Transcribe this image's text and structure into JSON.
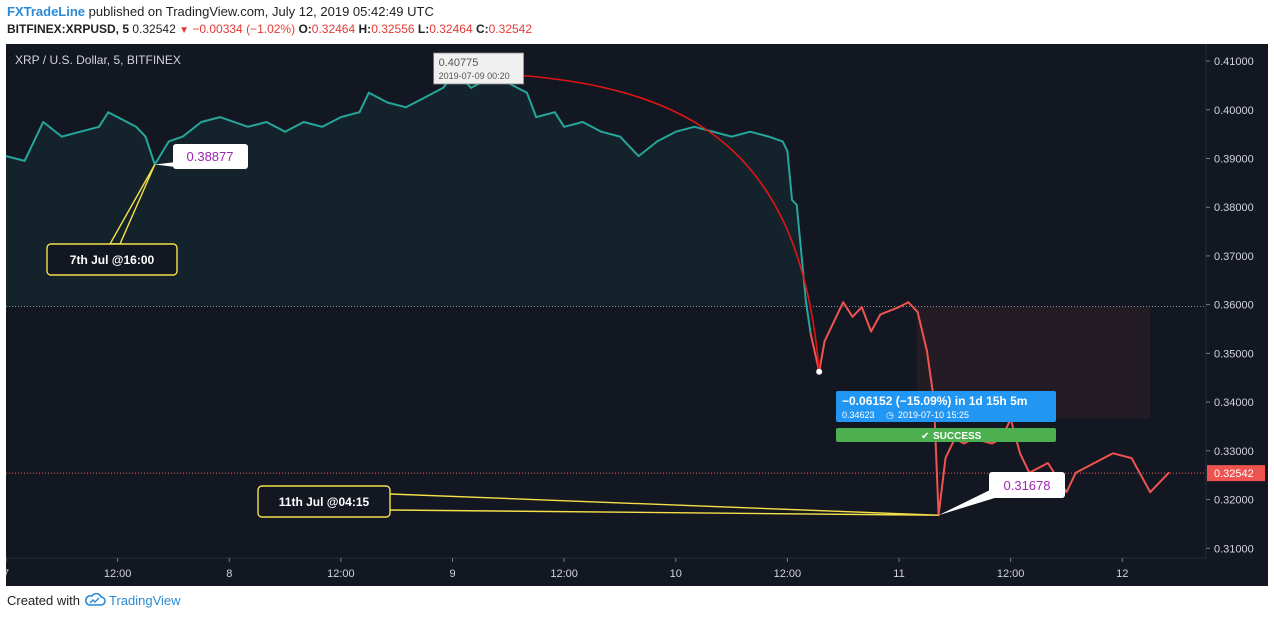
{
  "header": {
    "brand": "FXTradeLine",
    "published_text": "published on TradingView.com, July 12, 2019 05:42:49 UTC",
    "symbol": "BITFINEX:XRPUSD, 5",
    "last": "0.32542",
    "change": "−0.00334 (−1.02%)",
    "o_label": "O:",
    "o_value": "0.32464",
    "h_label": "H:",
    "h_value": "0.32556",
    "l_label": "L:",
    "l_value": "0.32464",
    "c_label": "C:",
    "c_value": "0.32542"
  },
  "footer": {
    "created_with": "Created with",
    "brand": "TradingView",
    "logo_icon": "tradingview-cloud-icon"
  },
  "colors": {
    "background": "#131722",
    "up": "#26a69a",
    "down": "#ef5350",
    "callout_border": "#f5e04a",
    "measure_blue": "#2196f3",
    "success_green": "#4caf50",
    "axis_text": "#d1d4dc"
  },
  "chart_data": {
    "type": "line",
    "title": "XRP / U.S. Dollar, 5, BITFINEX",
    "x_ticks": [
      "7",
      "12:00",
      "8",
      "12:00",
      "9",
      "12:00",
      "10",
      "12:00",
      "11",
      "12:00",
      "12"
    ],
    "y_ticks": [
      "0.41000",
      "0.40000",
      "0.39000",
      "0.38000",
      "0.37000",
      "0.36000",
      "0.35000",
      "0.34000",
      "0.33000",
      "0.32000",
      "0.31000"
    ],
    "ylim": [
      0.308,
      0.4135
    ],
    "xlim": [
      "2019-07-07 00:00",
      "2019-07-12 09:00"
    ],
    "current_price_label": "0.32542",
    "reference_level": 0.3596,
    "series": [
      {
        "color": "#26a69a",
        "points": [
          [
            "2019-07-07 00:00",
            0.3905
          ],
          [
            "2019-07-07 02:00",
            0.3895
          ],
          [
            "2019-07-07 04:00",
            0.3975
          ],
          [
            "2019-07-07 06:00",
            0.3945
          ],
          [
            "2019-07-07 08:00",
            0.3955
          ],
          [
            "2019-07-07 10:00",
            0.3965
          ],
          [
            "2019-07-07 11:00",
            0.3995
          ],
          [
            "2019-07-07 12:00",
            0.3985
          ],
          [
            "2019-07-07 14:00",
            0.3965
          ],
          [
            "2019-07-07 15:00",
            0.3945
          ],
          [
            "2019-07-07 16:00",
            0.38877
          ],
          [
            "2019-07-07 17:30",
            0.3935
          ],
          [
            "2019-07-07 19:00",
            0.3945
          ],
          [
            "2019-07-07 21:00",
            0.3975
          ],
          [
            "2019-07-07 23:00",
            0.3985
          ],
          [
            "2019-07-08 02:00",
            0.3965
          ],
          [
            "2019-07-08 04:00",
            0.3975
          ],
          [
            "2019-07-08 06:00",
            0.3955
          ],
          [
            "2019-07-08 08:00",
            0.3975
          ],
          [
            "2019-07-08 10:00",
            0.3965
          ],
          [
            "2019-07-08 12:00",
            0.3985
          ],
          [
            "2019-07-08 14:00",
            0.3995
          ],
          [
            "2019-07-08 15:00",
            0.4035
          ],
          [
            "2019-07-08 17:00",
            0.4015
          ],
          [
            "2019-07-08 19:00",
            0.4005
          ],
          [
            "2019-07-08 21:00",
            0.4025
          ],
          [
            "2019-07-08 23:00",
            0.4045
          ],
          [
            "2019-07-09 00:20",
            0.40775
          ],
          [
            "2019-07-09 02:00",
            0.4045
          ],
          [
            "2019-07-09 04:00",
            0.4065
          ],
          [
            "2019-07-09 06:00",
            0.4055
          ],
          [
            "2019-07-09 08:00",
            0.4035
          ],
          [
            "2019-07-09 09:00",
            0.3985
          ],
          [
            "2019-07-09 11:00",
            0.3995
          ],
          [
            "2019-07-09 12:00",
            0.3965
          ],
          [
            "2019-07-09 14:00",
            0.3975
          ],
          [
            "2019-07-09 16:00",
            0.3955
          ],
          [
            "2019-07-09 18:00",
            0.3945
          ],
          [
            "2019-07-09 20:00",
            0.3905
          ],
          [
            "2019-07-09 22:00",
            0.3935
          ],
          [
            "2019-07-10 00:00",
            0.3955
          ],
          [
            "2019-07-10 02:00",
            0.3965
          ],
          [
            "2019-07-10 04:00",
            0.3955
          ],
          [
            "2019-07-10 06:00",
            0.3945
          ],
          [
            "2019-07-10 08:00",
            0.3955
          ],
          [
            "2019-07-10 10:00",
            0.3945
          ],
          [
            "2019-07-10 11:30",
            0.3935
          ],
          [
            "2019-07-10 12:00",
            0.3915
          ],
          [
            "2019-07-10 12:30",
            0.3815
          ],
          [
            "2019-07-10 13:00",
            0.3805
          ],
          [
            "2019-07-10 14:00",
            0.3605
          ],
          [
            "2019-07-10 14:30",
            0.354
          ]
        ]
      },
      {
        "color": "#ef5350",
        "points": [
          [
            "2019-07-10 14:30",
            0.354
          ],
          [
            "2019-07-10 15:25",
            0.34623
          ],
          [
            "2019-07-10 16:00",
            0.3525
          ],
          [
            "2019-07-10 17:00",
            0.3565
          ],
          [
            "2019-07-10 18:00",
            0.3605
          ],
          [
            "2019-07-10 19:00",
            0.3575
          ],
          [
            "2019-07-10 20:00",
            0.3595
          ],
          [
            "2019-07-10 21:00",
            0.3545
          ],
          [
            "2019-07-10 22:00",
            0.358
          ],
          [
            "2019-07-11 00:00",
            0.3595
          ],
          [
            "2019-07-11 01:00",
            0.3605
          ],
          [
            "2019-07-11 02:00",
            0.3585
          ],
          [
            "2019-07-11 03:00",
            0.3505
          ],
          [
            "2019-07-11 03:45",
            0.3405
          ],
          [
            "2019-07-11 04:15",
            0.31678
          ],
          [
            "2019-07-11 05:00",
            0.3285
          ],
          [
            "2019-07-11 06:00",
            0.3325
          ],
          [
            "2019-07-11 07:00",
            0.3315
          ],
          [
            "2019-07-11 08:00",
            0.3325
          ],
          [
            "2019-07-11 10:00",
            0.3315
          ],
          [
            "2019-07-11 11:00",
            0.3325
          ],
          [
            "2019-07-11 12:00",
            0.3365
          ],
          [
            "2019-07-11 13:00",
            0.3295
          ],
          [
            "2019-07-11 14:00",
            0.3255
          ],
          [
            "2019-07-11 16:00",
            0.3275
          ],
          [
            "2019-07-11 18:00",
            0.3215
          ],
          [
            "2019-07-11 19:00",
            0.3255
          ],
          [
            "2019-07-11 21:00",
            0.3275
          ],
          [
            "2019-07-11 23:00",
            0.3295
          ],
          [
            "2019-07-12 01:00",
            0.3285
          ],
          [
            "2019-07-12 03:00",
            0.3215
          ],
          [
            "2019-07-12 05:00",
            0.3255
          ]
        ]
      }
    ],
    "annotations": {
      "high_label": {
        "value": "0.40775",
        "date": "2019-07-09 00:20"
      },
      "callout_7jul": {
        "price": "0.38877",
        "text": "7th Jul @16:00"
      },
      "callout_11jul": {
        "price": "0.31678",
        "text": "11th Jul @04:15"
      },
      "measure": {
        "text": "−0.06152 (−15.09%) in 1d 15h 5m",
        "sub_price": "0.34623",
        "sub_date": "2019-07-10  15:25",
        "status": "SUCCESS"
      }
    }
  }
}
